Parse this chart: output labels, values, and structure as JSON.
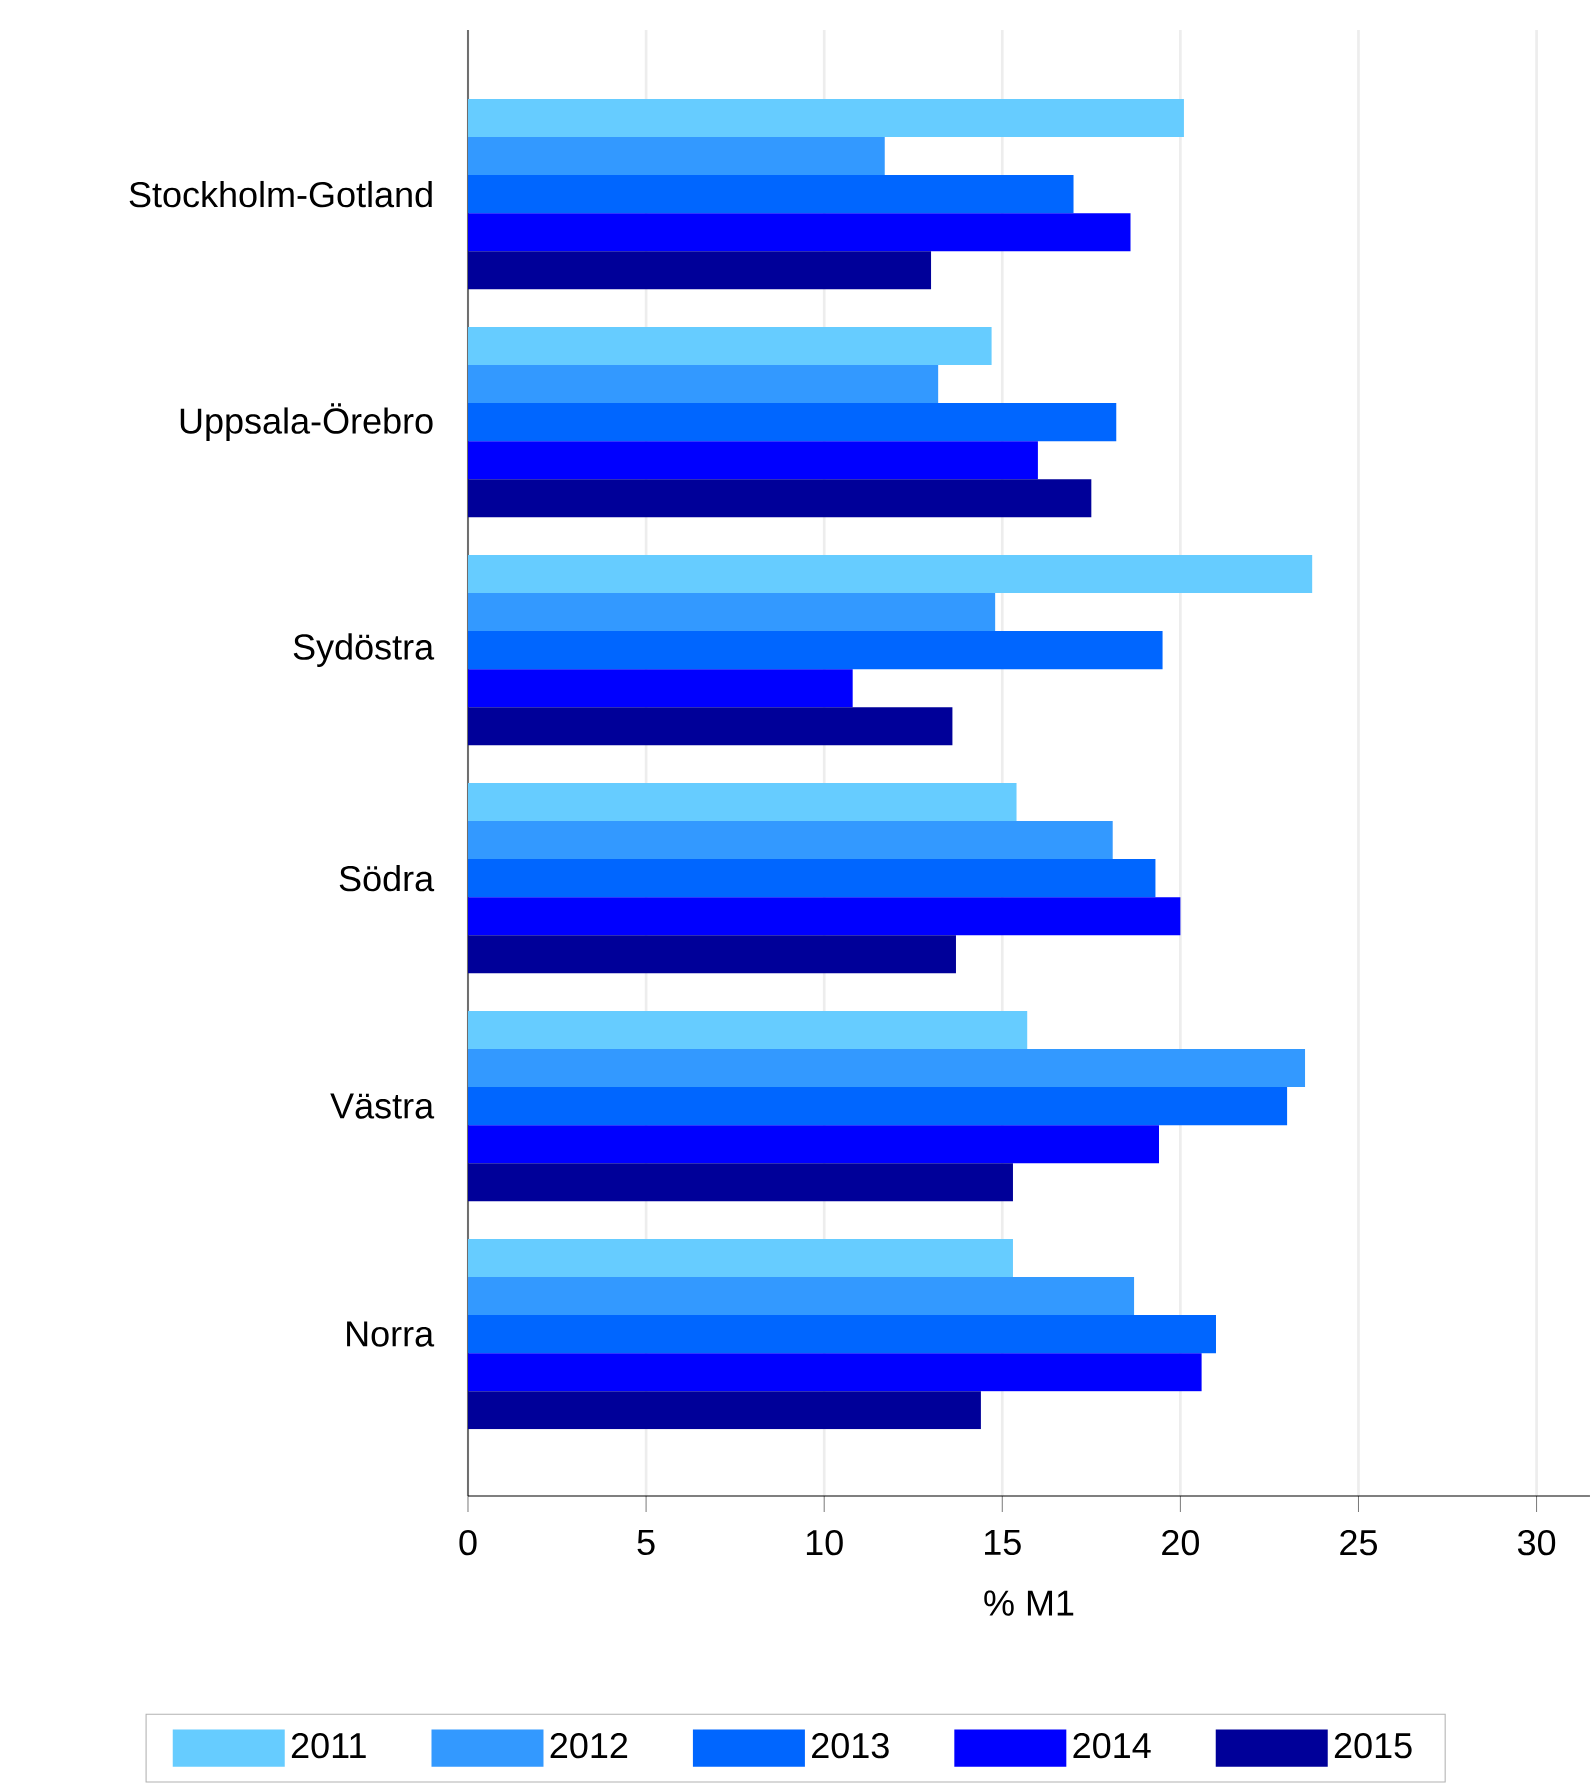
{
  "chart_data": {
    "type": "bar",
    "orientation": "horizontal",
    "xlabel": "% M1",
    "categories": [
      "Stockholm-Gotland",
      "Uppsala-Örebro",
      "Sydöstra",
      "Södra",
      "Västra",
      "Norra"
    ],
    "series": [
      {
        "name": "2011",
        "color": "#66ccff",
        "values": [
          20.1,
          14.7,
          23.7,
          15.4,
          15.7,
          15.3
        ]
      },
      {
        "name": "2012",
        "color": "#3399ff",
        "values": [
          11.7,
          13.2,
          14.8,
          18.1,
          23.5,
          18.7
        ]
      },
      {
        "name": "2013",
        "color": "#0066ff",
        "values": [
          17.0,
          18.2,
          19.5,
          19.3,
          23.0,
          21.0
        ]
      },
      {
        "name": "2014",
        "color": "#0000ff",
        "values": [
          18.6,
          16.0,
          10.8,
          20.0,
          19.4,
          20.6
        ]
      },
      {
        "name": "2015",
        "color": "#000099",
        "values": [
          13.0,
          17.5,
          13.6,
          13.7,
          15.3,
          14.4
        ]
      }
    ],
    "xlim": [
      0,
      31.5
    ],
    "xticks": [
      0,
      5,
      10,
      15,
      20,
      25,
      30
    ],
    "grid": "x",
    "legend": "bottom"
  }
}
